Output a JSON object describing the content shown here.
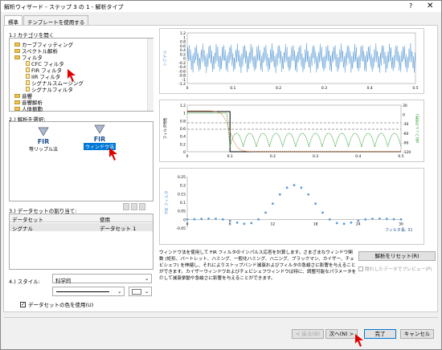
{
  "window": {
    "title": "解析ウィザード - ステップ 3 の 1 - 解析タイプ",
    "help": "?",
    "close": "✕"
  },
  "tabs": [
    {
      "label": "標準"
    },
    {
      "label": "テンプレートを使用する"
    }
  ],
  "step1": {
    "label": "1.) カテゴリを開く",
    "items": [
      {
        "label": "カーブフィッティング",
        "kind": "folder",
        "indent": 0
      },
      {
        "label": "スペクトル解析",
        "kind": "folder",
        "indent": 0
      },
      {
        "label": "フィルタ",
        "kind": "folder",
        "indent": 0
      },
      {
        "label": "CFC フィルタ",
        "kind": "file",
        "indent": 1
      },
      {
        "label": "FIR フィルタ",
        "kind": "file",
        "indent": 1
      },
      {
        "label": "IIR フィルタ",
        "kind": "file",
        "indent": 1
      },
      {
        "label": "シグナルスムージング",
        "kind": "file",
        "indent": 1
      },
      {
        "label": "シグナルフィルタ",
        "kind": "file",
        "indent": 1
      },
      {
        "label": "音響",
        "kind": "folder",
        "indent": 0
      },
      {
        "label": "音響解析",
        "kind": "folder",
        "indent": 0
      },
      {
        "label": "人体振動",
        "kind": "folder",
        "indent": 0
      }
    ]
  },
  "step2": {
    "label": "2.) 解析を選択:",
    "options": [
      {
        "title": "FIR",
        "caption": "等リップル法",
        "selected": false
      },
      {
        "title": "FIR",
        "caption": "ウィンドウ法",
        "selected": true
      }
    ]
  },
  "step3": {
    "label": "3.) データセットの割り当て:",
    "headers": [
      "データセット",
      "使用"
    ],
    "rows": [
      {
        "dataset": "シグナル",
        "use": "データセット 1"
      }
    ]
  },
  "step4": {
    "label": "4.) スタイル:",
    "style_value": "科学的",
    "checkbox_label": "データセットの色を使用(U)",
    "checkbox_checked": true
  },
  "plot1": {
    "ylabel": "シグナル",
    "yticks": [
      "1.2",
      "1",
      "0.8",
      "0.6",
      "0.4",
      "0.2",
      "0",
      "-0.2",
      "-0.4",
      "-0.6",
      "-0.8",
      "-1",
      "-1.2"
    ],
    "xticks": [
      "0",
      "0.1",
      "0.2",
      "0.3",
      "0.4",
      "0.5"
    ]
  },
  "plot2": {
    "ylabel_left": "フィルタ特性",
    "ylabel_right": "dB(フィルタ特性)",
    "yticks_left": [
      "1.2",
      "1",
      "0.8",
      "0.6",
      "0.4",
      "0.2",
      "0"
    ],
    "yticks_right": [
      "30",
      "0",
      "-30",
      "-60",
      "-90",
      "-120"
    ],
    "xticks": [
      "0",
      "0.1",
      "0.2",
      "0.3",
      "0.4",
      "0.5"
    ]
  },
  "plot3": {
    "ylabel": "FIR フィルタ",
    "yticks": [
      "0.25",
      "0.2",
      "0.15",
      "0.1",
      "0.05",
      "0",
      "-0.05"
    ],
    "xticks": [
      "0",
      "6",
      "12",
      "18",
      "24",
      "30"
    ],
    "annotation": "フィルタ長: 31"
  },
  "description": "ウィンドウ法を使用して FIR フィルタのインパルス応答を計算します。さまざまなウィンドウ関数 (矩形、バートレット、ハミング、一般化ハミング、ハニング、ブラックマン、カイザー、チェビシェフ) を伸縮し、それによりストップバンド減衰およびフィルタの急峻さに影響を与えることができます。カイザーウィンドウおよびチェビシェフウィンドウは特に、調整可能なパラメータを介して減衰挙動や急峻さに影響を与えることができます。",
  "reset_button": "解析をリセット(R)",
  "preview_checkbox": "隠れしたデータでプレビュー(P)",
  "footer": {
    "back": "< 戻る(B)",
    "next": "次へ(N) >",
    "finish": "完了",
    "cancel": "キャンセル"
  },
  "colors": {
    "signal_blue": "#5b9bd5",
    "accent": "#0078d7",
    "red": "#e00000",
    "green": "#2ca02c",
    "orange": "#e07020"
  }
}
